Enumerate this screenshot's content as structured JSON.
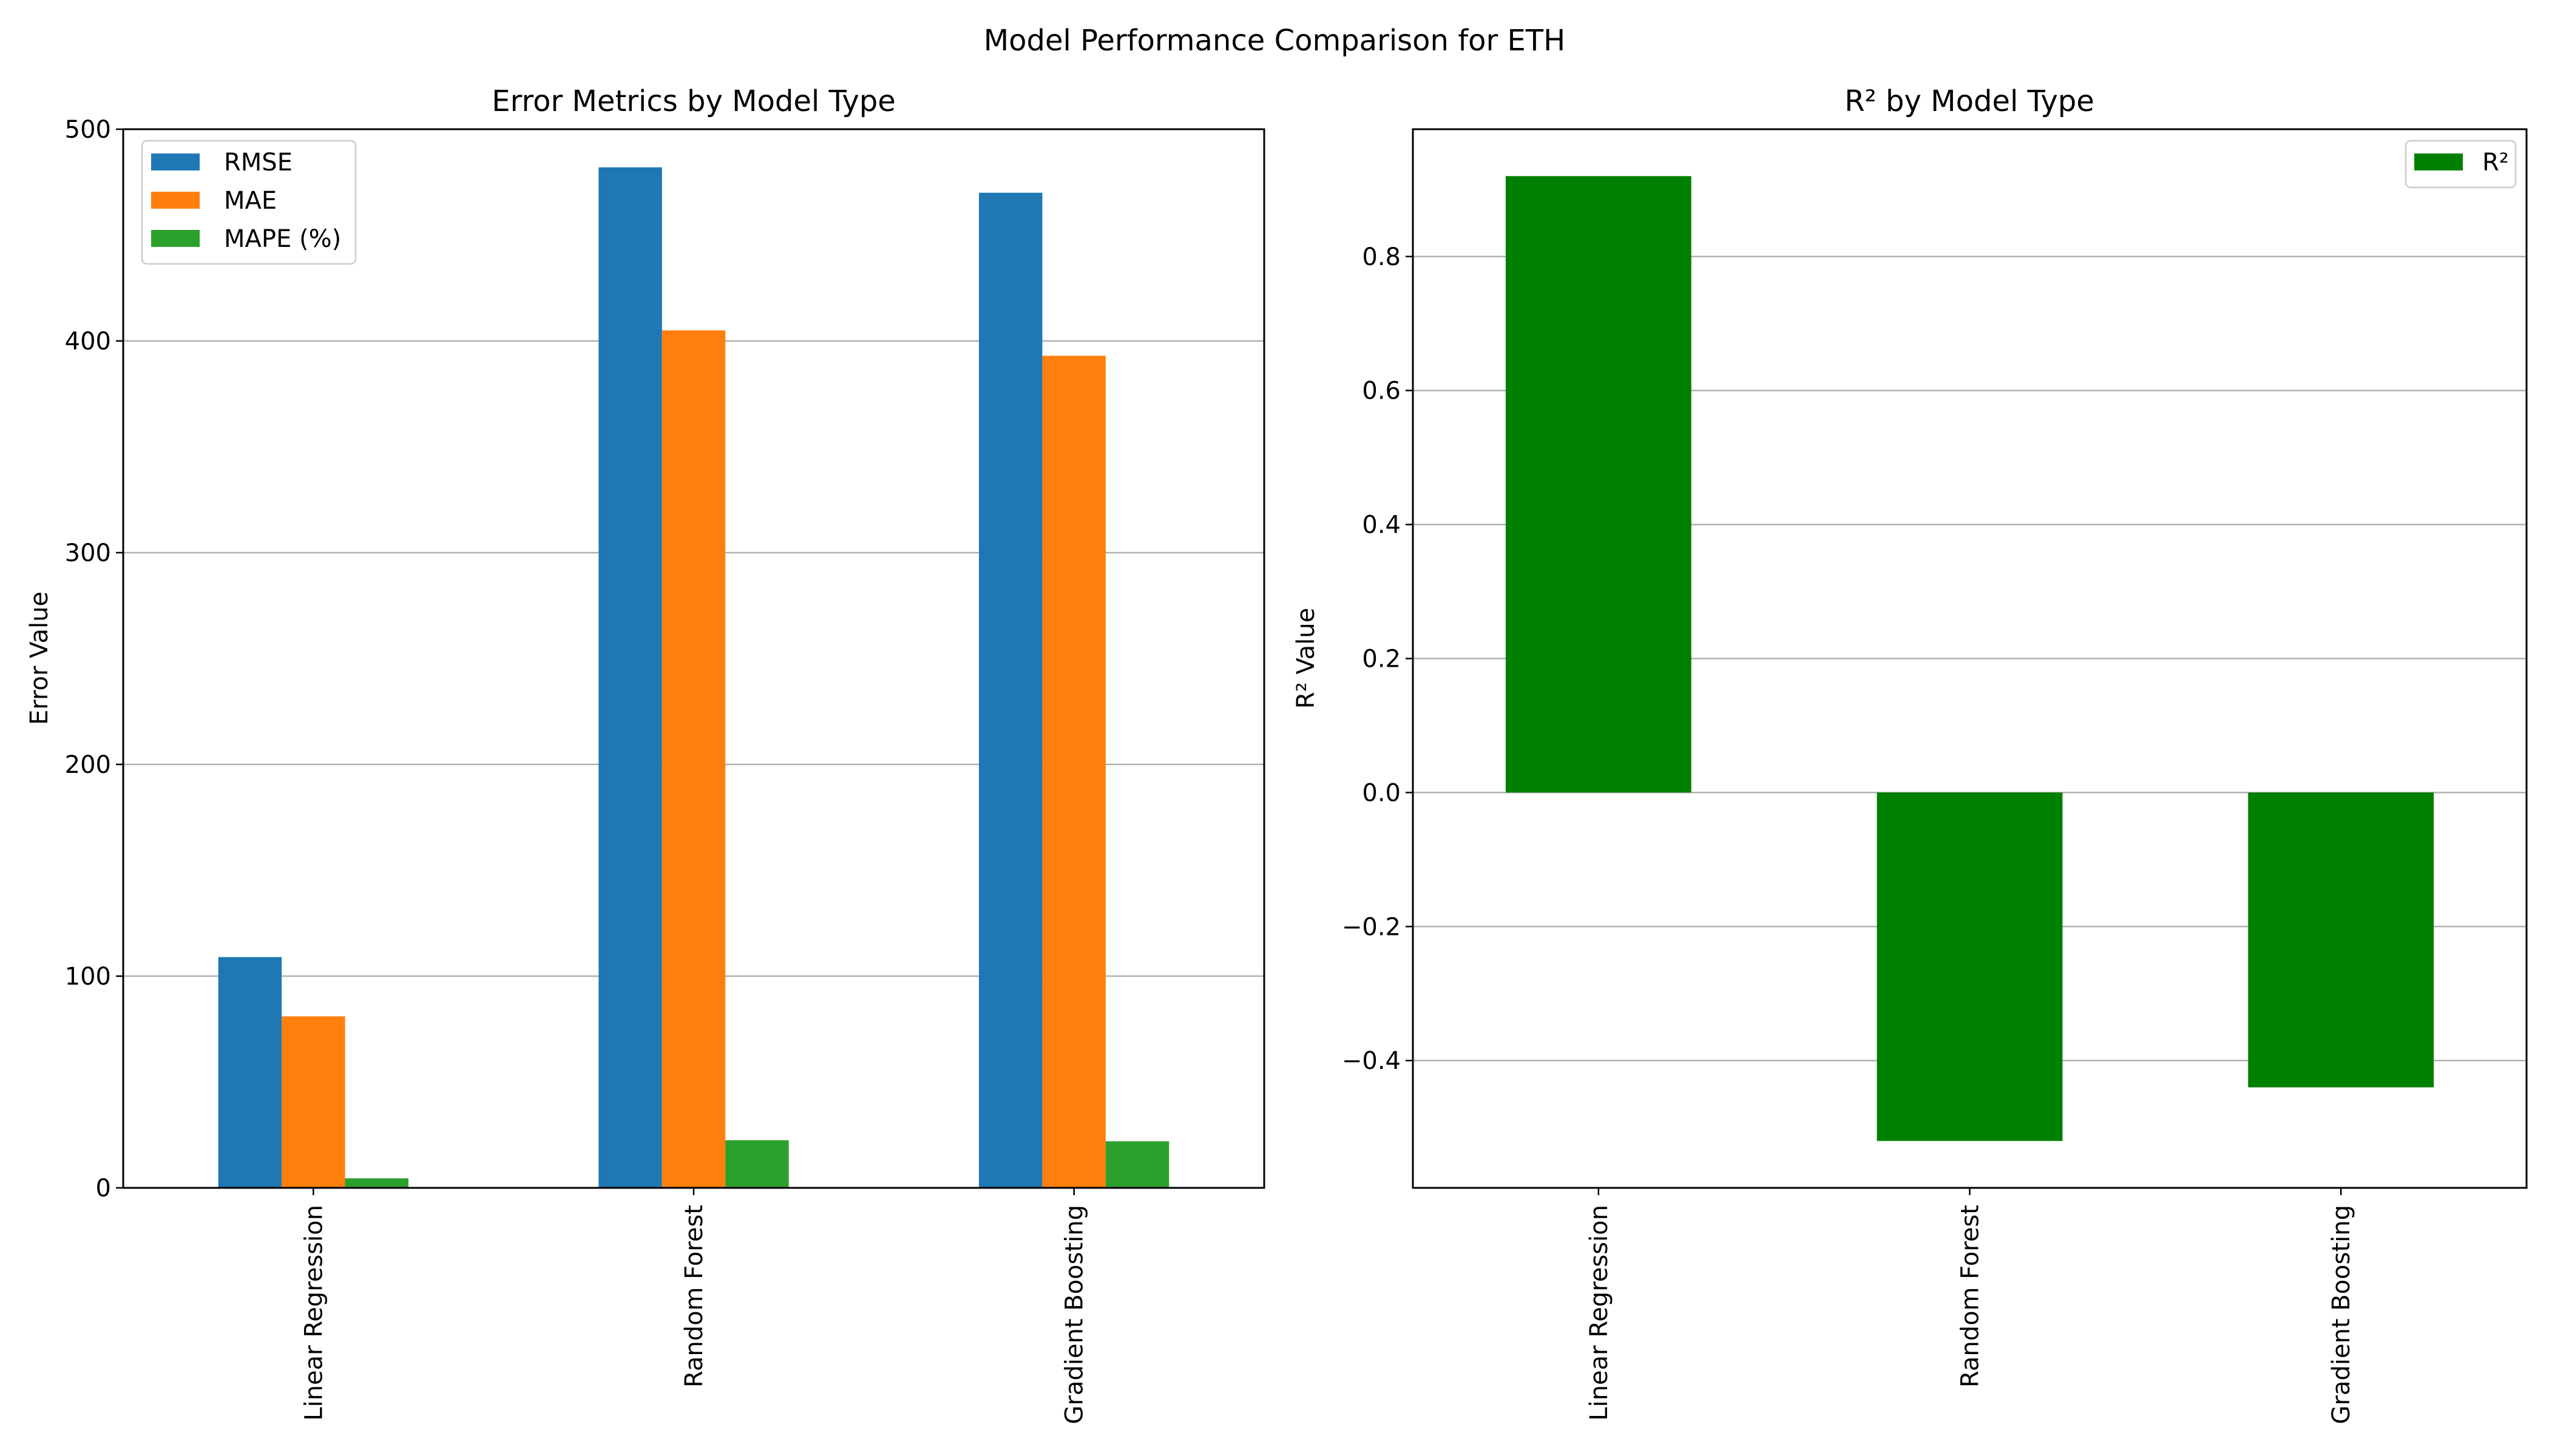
{
  "figure": {
    "title": "Model Performance Comparison for ETH"
  },
  "chart_data": [
    {
      "type": "bar",
      "title": "Error Metrics by Model Type",
      "xlabel": "",
      "ylabel": "Error Value",
      "categories": [
        "Linear Regression",
        "Random Forest",
        "Gradient Boosting"
      ],
      "series": [
        {
          "name": "RMSE",
          "color": "#1f77b4",
          "values": [
            109,
            482,
            470
          ]
        },
        {
          "name": "MAE",
          "color": "#ff7f0e",
          "values": [
            81,
            405,
            393
          ]
        },
        {
          "name": "MAPE (%)",
          "color": "#2ca02c",
          "values": [
            4.5,
            22.5,
            22
          ]
        }
      ],
      "ylim": [
        0,
        500
      ],
      "yticks": [
        0,
        100,
        200,
        300,
        400,
        500
      ],
      "ytick_labels": [
        "0",
        "100",
        "200",
        "300",
        "400",
        "500"
      ],
      "grid": "y",
      "legend": "upper-left"
    },
    {
      "type": "bar",
      "title": "R² by Model Type",
      "xlabel": "",
      "ylabel": "R² Value",
      "categories": [
        "Linear Regression",
        "Random Forest",
        "Gradient Boosting"
      ],
      "series": [
        {
          "name": "R²",
          "color": "#008000",
          "values": [
            0.92,
            -0.52,
            -0.44
          ]
        }
      ],
      "ylim": [
        -0.59,
        0.99
      ],
      "yticks": [
        -0.4,
        -0.2,
        0.0,
        0.2,
        0.4,
        0.6,
        0.8
      ],
      "ytick_labels": [
        "−0.4",
        "−0.2",
        "0.0",
        "0.2",
        "0.4",
        "0.6",
        "0.8"
      ],
      "grid": "y",
      "legend": "upper-right"
    }
  ]
}
